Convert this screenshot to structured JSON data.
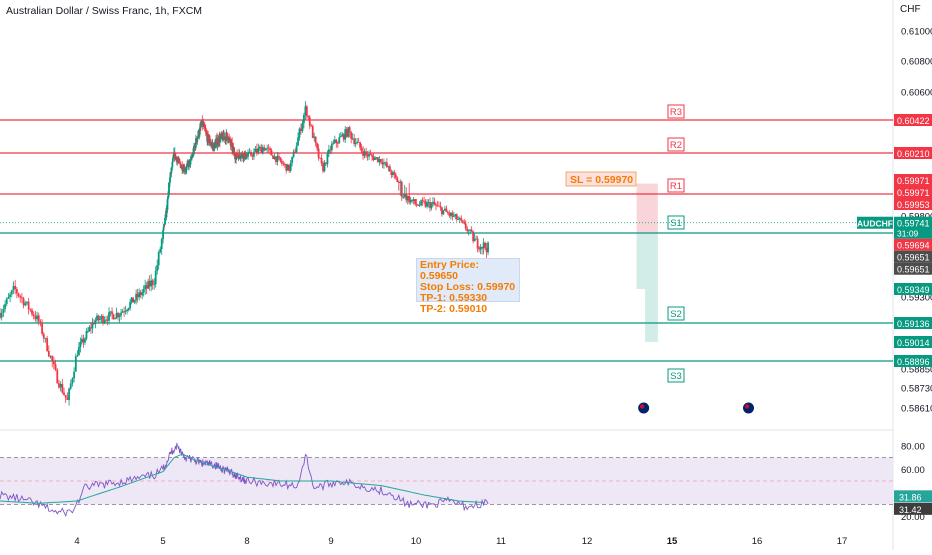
{
  "header": {
    "title": "Australian Dollar / Swiss Franc, 1h, FXCM",
    "currency": "CHF"
  },
  "annotation": {
    "sl_label": "SL = 0.59970",
    "entry_lines": [
      "Entry Price: 0.59650",
      "Stop Loss: 0.59970",
      "TP-1: 0.59330",
      "TP-2: 0.59010"
    ]
  },
  "chart_data": {
    "type": "candlestick",
    "title": "Australian Dollar / Swiss Franc, 1h, FXCM",
    "ylabel": "CHF",
    "ylim": [
      0.5855,
      0.6125
    ],
    "y_ticks": [
      "0.61000",
      "0.60800",
      "0.60600",
      "0.59800",
      "0.59300",
      "0.58850",
      "0.58730",
      "0.58610"
    ],
    "x_ticks": [
      "4",
      "5",
      "8",
      "9",
      "10",
      "11",
      "12",
      "15",
      "16",
      "17"
    ],
    "x_tick_days": [
      4,
      5,
      8,
      9,
      10,
      11,
      12,
      15,
      16,
      17
    ],
    "x_range": [
      3.2,
      17.9
    ],
    "series_anchors": [
      [
        3.2,
        0.592
      ],
      [
        3.35,
        0.5935
      ],
      [
        3.6,
        0.5915
      ],
      [
        3.8,
        0.5878
      ],
      [
        3.9,
        0.5865
      ],
      [
        4.0,
        0.5895
      ],
      [
        4.2,
        0.5915
      ],
      [
        4.5,
        0.592
      ],
      [
        4.7,
        0.593
      ],
      [
        4.9,
        0.594
      ],
      [
        5.0,
        0.5965
      ],
      [
        5.2,
        0.5995
      ],
      [
        5.4,
        0.602
      ],
      [
        5.6,
        0.6012
      ],
      [
        5.8,
        0.6008
      ],
      [
        6.0,
        0.6015
      ],
      [
        6.2,
        0.603
      ],
      [
        6.4,
        0.604
      ],
      [
        6.6,
        0.603
      ],
      [
        6.8,
        0.6025
      ],
      [
        7.0,
        0.603
      ],
      [
        7.3,
        0.6032
      ],
      [
        7.6,
        0.6018
      ],
      [
        7.8,
        0.602
      ],
      [
        8.0,
        0.6018
      ],
      [
        8.2,
        0.6025
      ],
      [
        8.5,
        0.6008
      ],
      [
        8.7,
        0.605
      ],
      [
        8.9,
        0.6008
      ],
      [
        9.0,
        0.6025
      ],
      [
        9.2,
        0.6035
      ],
      [
        9.4,
        0.602
      ],
      [
        9.6,
        0.6015
      ],
      [
        9.8,
        0.5997
      ],
      [
        10.0,
        0.5988
      ],
      [
        10.2,
        0.5988
      ],
      [
        10.5,
        0.5977
      ],
      [
        10.7,
        0.596
      ],
      [
        10.85,
        0.5957
      ]
    ],
    "horizontal_levels": [
      {
        "label": "R3",
        "price": 0.60422,
        "color": "#f23645"
      },
      {
        "label": "R2",
        "price": 0.6021,
        "color": "#f23645"
      },
      {
        "label": "R1",
        "price": 0.59953,
        "color": "#f23645"
      },
      {
        "label": "S1",
        "price": 0.59651,
        "color": "#089981"
      },
      {
        "label": "S2",
        "price": 0.59136,
        "color": "#089981"
      },
      {
        "label": "S3",
        "price": 0.58896,
        "color": "#089981"
      }
    ],
    "price_labels": [
      {
        "text": "0.60422",
        "price": 0.60422,
        "color": "#f23645"
      },
      {
        "text": "0.60210",
        "price": 0.6021,
        "color": "#f23645"
      },
      {
        "text": "0.59971",
        "price": 0.59995,
        "color": "#f23645"
      },
      {
        "text": "0.59971",
        "price": 0.59973,
        "color": "#f23645"
      },
      {
        "text": "0.59953",
        "price": 0.59953,
        "color": "#f23645"
      },
      {
        "text": "AUDCHF",
        "price": 0.59741,
        "color": "#089981",
        "side": "left"
      },
      {
        "text": "0.59741",
        "price": 0.59741,
        "color": "#089981",
        "sub": "31:09"
      },
      {
        "text": "0.59694",
        "price": 0.59694,
        "color": "#f23645"
      },
      {
        "text": "0.59651",
        "price": 0.59651,
        "color": "#4d4d4d"
      },
      {
        "text": "0.59651",
        "price": 0.59629,
        "color": "#4d4d4d"
      },
      {
        "text": "0.59349",
        "price": 0.59349,
        "color": "#089981"
      },
      {
        "text": "0.59136",
        "price": 0.59136,
        "color": "#089981"
      },
      {
        "text": "0.59014",
        "price": 0.59014,
        "color": "#089981"
      },
      {
        "text": "0.58896",
        "price": 0.58896,
        "color": "#089981"
      }
    ],
    "positions": [
      {
        "x0": 13.75,
        "x1": 14.05,
        "entry": 0.59651,
        "stop": 0.5997,
        "target": 0.59349
      },
      {
        "x0": 14.05,
        "x1": 14.5,
        "entry": 0.59651,
        "stop": 0.5997,
        "target": 0.59014
      }
    ],
    "rsi": {
      "ylim": [
        10,
        90
      ],
      "ticks": [
        "80.00",
        "60.00",
        "20.00"
      ],
      "tick_values": [
        80,
        60,
        20
      ],
      "overbought": 70,
      "mid": 50,
      "oversold": 30,
      "current_labels": [
        {
          "text": "31.86",
          "value": 31.86
        },
        {
          "text": "31.42",
          "value": 31.42
        }
      ],
      "anchors": [
        [
          3.2,
          38
        ],
        [
          3.4,
          35
        ],
        [
          3.6,
          30
        ],
        [
          3.8,
          23
        ],
        [
          3.95,
          24
        ],
        [
          4.1,
          45
        ],
        [
          4.4,
          48
        ],
        [
          4.7,
          52
        ],
        [
          4.9,
          55
        ],
        [
          5.1,
          65
        ],
        [
          5.3,
          75
        ],
        [
          5.5,
          80
        ],
        [
          5.8,
          70
        ],
        [
          6.1,
          68
        ],
        [
          6.4,
          65
        ],
        [
          6.8,
          64
        ],
        [
          7.2,
          60
        ],
        [
          7.6,
          55
        ],
        [
          8.0,
          50
        ],
        [
          8.3,
          48
        ],
        [
          8.6,
          46
        ],
        [
          8.7,
          72
        ],
        [
          8.8,
          44
        ],
        [
          9.1,
          50
        ],
        [
          9.4,
          45
        ],
        [
          9.7,
          40
        ],
        [
          9.9,
          30
        ],
        [
          10.2,
          30
        ],
        [
          10.4,
          33
        ],
        [
          10.6,
          28
        ],
        [
          10.85,
          31.9
        ]
      ],
      "ma_anchors": [
        [
          3.2,
          33
        ],
        [
          3.6,
          31
        ],
        [
          4.0,
          33
        ],
        [
          4.5,
          45
        ],
        [
          5.0,
          58
        ],
        [
          5.4,
          70
        ],
        [
          5.7,
          73
        ],
        [
          6.1,
          68
        ],
        [
          6.6,
          64
        ],
        [
          7.2,
          60
        ],
        [
          7.8,
          55
        ],
        [
          8.4,
          50
        ],
        [
          9.0,
          50
        ],
        [
          9.6,
          46
        ],
        [
          10.1,
          38
        ],
        [
          10.5,
          33
        ],
        [
          10.85,
          31.4
        ]
      ]
    }
  },
  "markers": [
    {
      "name": "au-flag-icon",
      "day": 14.0
    },
    {
      "name": "au-flag-icon",
      "day": 15.9
    }
  ],
  "colors": {
    "up": "#089981",
    "down": "#f23645",
    "rsi_line": "#7e57c2",
    "rsi_ma": "#26a69a",
    "rsi_band": "#ede7f6",
    "axis_text": "#131722",
    "ob_os": "#787b86",
    "mid_line": "#f23645"
  }
}
